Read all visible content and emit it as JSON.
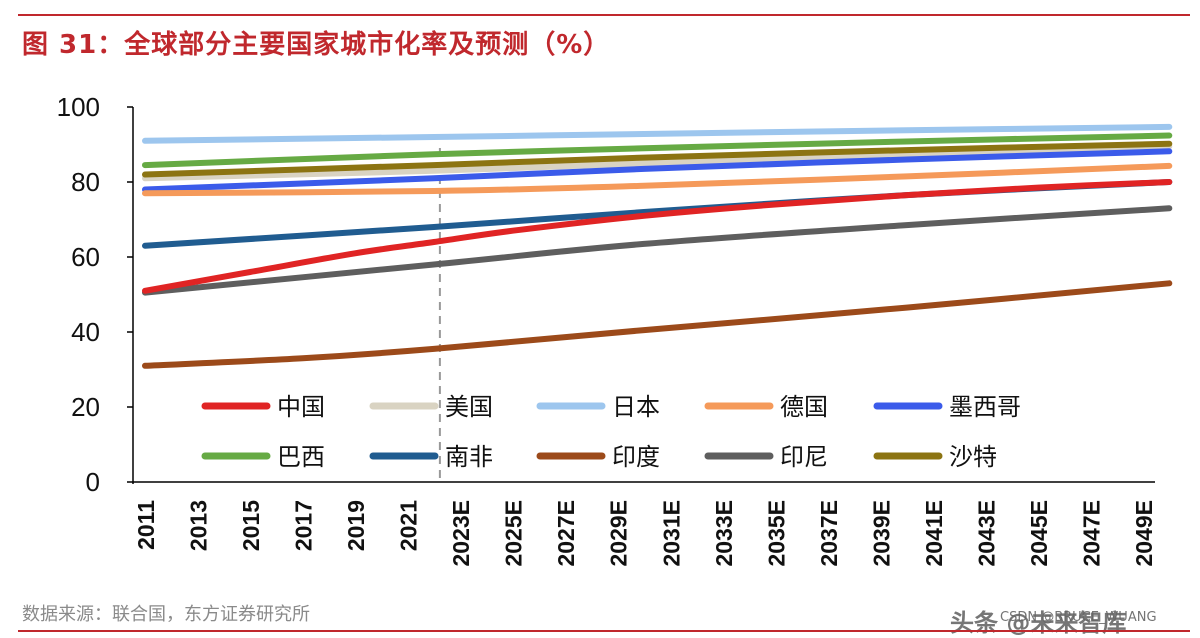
{
  "title": "图 31：全球部分主要国家城市化率及预测（%）",
  "source": "数据来源：联合国，东方证券研究所",
  "watermark": "头条 @未来智库",
  "watermark_small": "CSDN @BRUCE_WUANG",
  "colors": {
    "title": "#c0282d",
    "rule": "#c0282d",
    "axis": "#000000",
    "divider": "#999999"
  },
  "chart_data": {
    "type": "line",
    "title": "全球部分主要国家城市化率及预测（%）",
    "xlabel": "",
    "ylabel": "",
    "ylim": [
      0,
      100
    ],
    "yticks": [
      0,
      20,
      40,
      60,
      80,
      100
    ],
    "x": [
      2011,
      2049
    ],
    "xticks": [
      "2011",
      "2013",
      "2015",
      "2017",
      "2019",
      "2021",
      "2023E",
      "2025E",
      "2027E",
      "2029E",
      "2031E",
      "2033E",
      "2035E",
      "2037E",
      "2039E",
      "2041E",
      "2043E",
      "2045E",
      "2047E",
      "2049E"
    ],
    "forecast_divider_year": 2022,
    "legend_position": "middle",
    "series": [
      {
        "name": "中国",
        "color": "#e02424",
        "points": [
          [
            2011,
            51
          ],
          [
            2015,
            56
          ],
          [
            2019,
            61
          ],
          [
            2022,
            64
          ],
          [
            2025,
            67
          ],
          [
            2030,
            71
          ],
          [
            2035,
            74
          ],
          [
            2040,
            76.5
          ],
          [
            2045,
            78.5
          ],
          [
            2050,
            80
          ]
        ]
      },
      {
        "name": "美国",
        "color": "#d9d3c2",
        "points": [
          [
            2011,
            81
          ],
          [
            2022,
            83
          ],
          [
            2030,
            85
          ],
          [
            2040,
            87.5
          ],
          [
            2050,
            89.5
          ]
        ]
      },
      {
        "name": "日本",
        "color": "#9dc6ee",
        "points": [
          [
            2011,
            91
          ],
          [
            2022,
            92
          ],
          [
            2030,
            92.8
          ],
          [
            2040,
            93.8
          ],
          [
            2050,
            94.7
          ]
        ]
      },
      {
        "name": "德国",
        "color": "#f59a5a",
        "points": [
          [
            2011,
            77
          ],
          [
            2022,
            77.6
          ],
          [
            2030,
            79
          ],
          [
            2040,
            81.5
          ],
          [
            2050,
            84.3
          ]
        ]
      },
      {
        "name": "墨西哥",
        "color": "#3b5bea",
        "points": [
          [
            2011,
            78
          ],
          [
            2022,
            81
          ],
          [
            2030,
            83.5
          ],
          [
            2040,
            86
          ],
          [
            2050,
            88.2
          ]
        ]
      },
      {
        "name": "巴西",
        "color": "#66aa44",
        "points": [
          [
            2011,
            84.5
          ],
          [
            2022,
            87.4
          ],
          [
            2030,
            89
          ],
          [
            2040,
            90.8
          ],
          [
            2050,
            92.4
          ]
        ]
      },
      {
        "name": "南非",
        "color": "#205c90",
        "points": [
          [
            2011,
            63
          ],
          [
            2022,
            68
          ],
          [
            2030,
            72
          ],
          [
            2040,
            76.5
          ],
          [
            2050,
            80
          ]
        ]
      },
      {
        "name": "印度",
        "color": "#9c4a1a",
        "points": [
          [
            2011,
            31
          ],
          [
            2017,
            33
          ],
          [
            2022,
            35.5
          ],
          [
            2030,
            40.5
          ],
          [
            2040,
            46.5
          ],
          [
            2050,
            53
          ]
        ]
      },
      {
        "name": "印尼",
        "color": "#5e5e5e",
        "points": [
          [
            2011,
            50.5
          ],
          [
            2022,
            58
          ],
          [
            2030,
            63.5
          ],
          [
            2040,
            68.5
          ],
          [
            2050,
            73
          ]
        ]
      },
      {
        "name": "沙特",
        "color": "#8c7412",
        "points": [
          [
            2011,
            82
          ],
          [
            2022,
            84.5
          ],
          [
            2030,
            86.5
          ],
          [
            2040,
            88.5
          ],
          [
            2050,
            90.2
          ]
        ]
      }
    ]
  }
}
